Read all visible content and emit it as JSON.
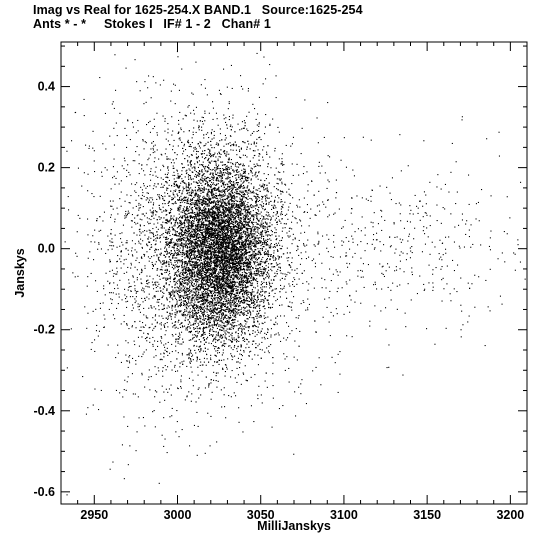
{
  "title_line1": "Imag vs Real for 1625-254.X BAND.1   Source:1625-254",
  "title_line2": "Ants * - *     Stokes I   IF# 1 - 2   Chan# 1",
  "chart_data": {
    "type": "scatter",
    "xlabel": "MilliJanskys",
    "ylabel": "Janskys",
    "xlim": [
      2930,
      3210
    ],
    "ylim": [
      -0.63,
      0.51
    ],
    "x_ticks": [
      2950,
      3000,
      3050,
      3100,
      3150,
      3200
    ],
    "x_tick_labels": [
      "2950",
      "3000",
      "3050",
      "3100",
      "3150",
      "3200"
    ],
    "y_ticks": [
      0.4,
      0.2,
      0.0,
      -0.2,
      -0.4,
      -0.6
    ],
    "y_tick_labels": [
      "0.4",
      "0.2",
      "0.0",
      "-0.2",
      "-0.4",
      "-0.6"
    ],
    "grid": false,
    "point_color": "#000000",
    "clusters": [
      {
        "center_x": 3025,
        "center_y": 0.0,
        "sd_x": 15,
        "sd_y": 0.105,
        "count": 9000
      },
      {
        "center_x": 3020,
        "center_y": 0.0,
        "sd_x": 28,
        "sd_y": 0.17,
        "count": 2600
      },
      {
        "center_x": 3130,
        "center_y": 0.0,
        "sd_x": 40,
        "sd_y": 0.11,
        "count": 450
      },
      {
        "center_x": 2990,
        "center_y": -0.05,
        "sd_x": 25,
        "sd_y": 0.2,
        "count": 700
      }
    ]
  }
}
